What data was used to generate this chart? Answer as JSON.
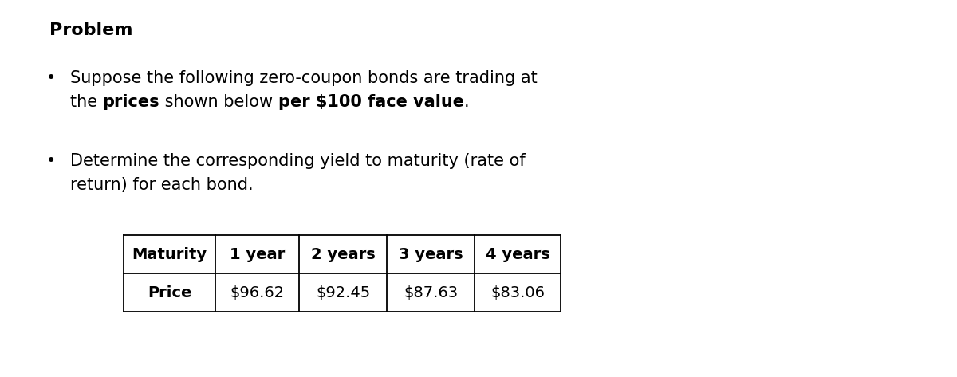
{
  "title": "Problem",
  "line1_bullet1": "Suppose the following zero-coupon bonds are trading at",
  "line2_bullet1_parts": [
    {
      "text": "the ",
      "bold": false
    },
    {
      "text": "prices",
      "bold": true
    },
    {
      "text": " shown below ",
      "bold": false
    },
    {
      "text": "per $100 face value",
      "bold": true
    },
    {
      "text": ".",
      "bold": false
    }
  ],
  "line1_bullet2": "Determine the corresponding yield to maturity (rate of",
  "line2_bullet2": "return) for each bond.",
  "table_headers": [
    "Maturity",
    "1 year",
    "2 years",
    "3 years",
    "4 years"
  ],
  "table_row_label": "Price",
  "table_values": [
    "$96.62",
    "$92.45",
    "$87.63",
    "$83.06"
  ],
  "background_color": "#ffffff",
  "text_color": "#000000",
  "title_fontsize": 16,
  "body_fontsize": 15,
  "table_fontsize": 14
}
